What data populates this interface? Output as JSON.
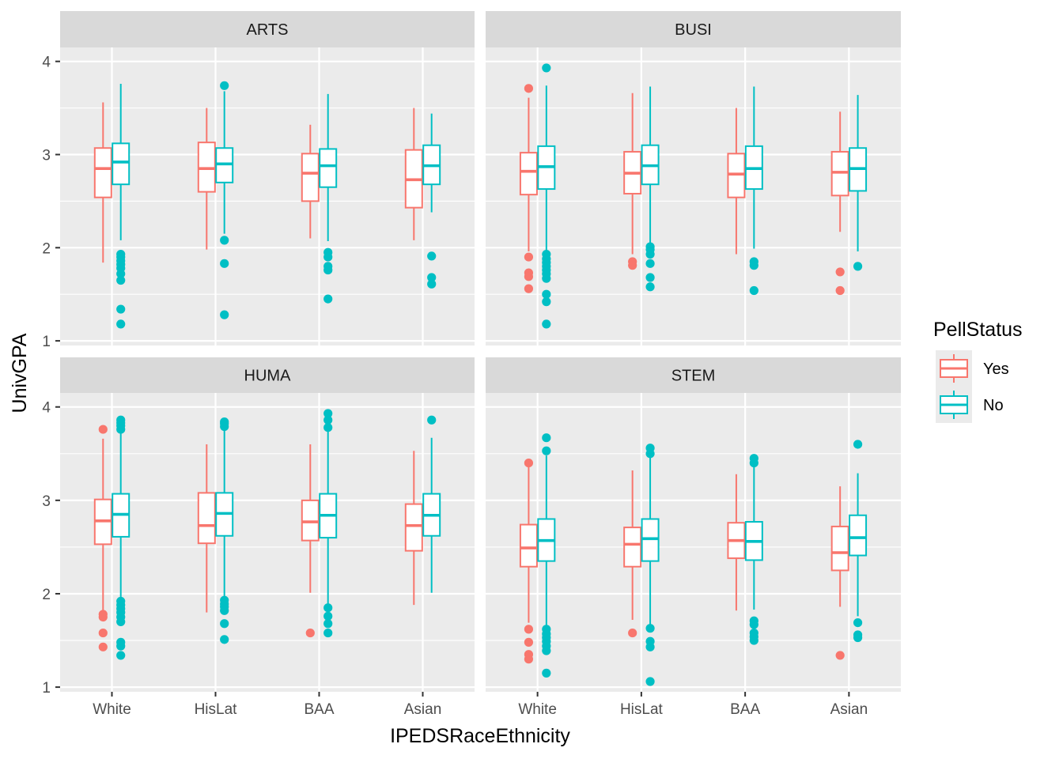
{
  "chart_data": {
    "type": "boxplot",
    "facet_layout": "2x2",
    "xlabel": "IPEDSRaceEthnicity",
    "ylabel": "UnivGPA",
    "ylim": [
      0.95,
      4.15
    ],
    "yticks": [
      1,
      2,
      3,
      4
    ],
    "categories": [
      "White",
      "HisLat",
      "BAA",
      "Asian"
    ],
    "legend": {
      "title": "PellStatus",
      "position": "right",
      "entries": [
        {
          "name": "Yes",
          "color": "#F8766D"
        },
        {
          "name": "No",
          "color": "#00BFC4"
        }
      ]
    },
    "panels": [
      {
        "facet": "ARTS",
        "groups": [
          {
            "category": "White",
            "series": "Yes",
            "q1": 2.54,
            "median": 2.85,
            "q3": 3.07,
            "whisker_low": 1.84,
            "whisker_high": 3.56,
            "outliers": []
          },
          {
            "category": "White",
            "series": "No",
            "q1": 2.68,
            "median": 2.92,
            "q3": 3.12,
            "whisker_low": 2.08,
            "whisker_high": 3.76,
            "outliers": [
              1.93,
              1.9,
              1.86,
              1.82,
              1.78,
              1.72,
              1.65,
              1.34,
              1.18
            ]
          },
          {
            "category": "HisLat",
            "series": "Yes",
            "q1": 2.6,
            "median": 2.85,
            "q3": 3.13,
            "whisker_low": 1.98,
            "whisker_high": 3.5,
            "outliers": []
          },
          {
            "category": "HisLat",
            "series": "No",
            "q1": 2.7,
            "median": 2.9,
            "q3": 3.07,
            "whisker_low": 2.15,
            "whisker_high": 3.68,
            "outliers": [
              3.74,
              2.08,
              1.83,
              1.28
            ]
          },
          {
            "category": "BAA",
            "series": "Yes",
            "q1": 2.5,
            "median": 2.8,
            "q3": 3.01,
            "whisker_low": 2.1,
            "whisker_high": 3.32,
            "outliers": []
          },
          {
            "category": "BAA",
            "series": "No",
            "q1": 2.65,
            "median": 2.88,
            "q3": 3.06,
            "whisker_low": 2.07,
            "whisker_high": 3.65,
            "outliers": [
              1.95,
              1.9,
              1.8,
              1.76,
              1.45
            ]
          },
          {
            "category": "Asian",
            "series": "Yes",
            "q1": 2.43,
            "median": 2.73,
            "q3": 3.05,
            "whisker_low": 2.08,
            "whisker_high": 3.5,
            "outliers": []
          },
          {
            "category": "Asian",
            "series": "No",
            "q1": 2.68,
            "median": 2.88,
            "q3": 3.1,
            "whisker_low": 2.38,
            "whisker_high": 3.44,
            "outliers": [
              1.91,
              1.68,
              1.61
            ]
          }
        ]
      },
      {
        "facet": "BUSI",
        "groups": [
          {
            "category": "White",
            "series": "Yes",
            "q1": 2.57,
            "median": 2.82,
            "q3": 3.02,
            "whisker_low": 1.96,
            "whisker_high": 3.61,
            "outliers": [
              3.71,
              1.9,
              1.73,
              1.69,
              1.56
            ]
          },
          {
            "category": "White",
            "series": "No",
            "q1": 2.63,
            "median": 2.87,
            "q3": 3.09,
            "whisker_low": 1.96,
            "whisker_high": 3.74,
            "outliers": [
              3.93,
              1.93,
              1.88,
              1.84,
              1.8,
              1.76,
              1.72,
              1.67,
              1.5,
              1.42,
              1.18
            ]
          },
          {
            "category": "HisLat",
            "series": "Yes",
            "q1": 2.58,
            "median": 2.8,
            "q3": 3.03,
            "whisker_low": 1.93,
            "whisker_high": 3.66,
            "outliers": [
              1.85,
              1.81
            ]
          },
          {
            "category": "HisLat",
            "series": "No",
            "q1": 2.68,
            "median": 2.88,
            "q3": 3.1,
            "whisker_low": 2.04,
            "whisker_high": 3.73,
            "outliers": [
              2.01,
              1.98,
              1.93,
              1.83,
              1.68,
              1.58
            ]
          },
          {
            "category": "BAA",
            "series": "Yes",
            "q1": 2.54,
            "median": 2.79,
            "q3": 3.01,
            "whisker_low": 1.93,
            "whisker_high": 3.5,
            "outliers": []
          },
          {
            "category": "BAA",
            "series": "No",
            "q1": 2.63,
            "median": 2.85,
            "q3": 3.09,
            "whisker_low": 1.99,
            "whisker_high": 3.73,
            "outliers": [
              1.85,
              1.81,
              1.54
            ]
          },
          {
            "category": "Asian",
            "series": "Yes",
            "q1": 2.56,
            "median": 2.81,
            "q3": 3.03,
            "whisker_low": 2.17,
            "whisker_high": 3.46,
            "outliers": [
              1.74,
              1.54
            ]
          },
          {
            "category": "Asian",
            "series": "No",
            "q1": 2.61,
            "median": 2.85,
            "q3": 3.07,
            "whisker_low": 1.96,
            "whisker_high": 3.64,
            "outliers": [
              1.8
            ]
          }
        ]
      },
      {
        "facet": "HUMA",
        "groups": [
          {
            "category": "White",
            "series": "Yes",
            "q1": 2.53,
            "median": 2.78,
            "q3": 3.01,
            "whisker_low": 1.8,
            "whisker_high": 3.66,
            "outliers": [
              3.76,
              1.78,
              1.75,
              1.58,
              1.43
            ]
          },
          {
            "category": "White",
            "series": "No",
            "q1": 2.61,
            "median": 2.85,
            "q3": 3.07,
            "whisker_low": 1.95,
            "whisker_high": 3.74,
            "outliers": [
              3.86,
              3.83,
              3.8,
              3.76,
              1.92,
              1.88,
              1.84,
              1.8,
              1.75,
              1.7,
              1.48,
              1.44,
              1.34
            ]
          },
          {
            "category": "HisLat",
            "series": "Yes",
            "q1": 2.54,
            "median": 2.73,
            "q3": 3.08,
            "whisker_low": 1.8,
            "whisker_high": 3.6,
            "outliers": []
          },
          {
            "category": "HisLat",
            "series": "No",
            "q1": 2.62,
            "median": 2.86,
            "q3": 3.08,
            "whisker_low": 1.96,
            "whisker_high": 3.76,
            "outliers": [
              3.84,
              3.82,
              3.79,
              1.93,
              1.89,
              1.86,
              1.82,
              1.68,
              1.51
            ]
          },
          {
            "category": "BAA",
            "series": "Yes",
            "q1": 2.57,
            "median": 2.77,
            "q3": 3.0,
            "whisker_low": 2.01,
            "whisker_high": 3.6,
            "outliers": [
              1.58
            ]
          },
          {
            "category": "BAA",
            "series": "No",
            "q1": 2.6,
            "median": 2.84,
            "q3": 3.07,
            "whisker_low": 1.88,
            "whisker_high": 3.76,
            "outliers": [
              3.93,
              3.86,
              3.78,
              1.85,
              1.76,
              1.68,
              1.58
            ]
          },
          {
            "category": "Asian",
            "series": "Yes",
            "q1": 2.46,
            "median": 2.73,
            "q3": 2.96,
            "whisker_low": 1.88,
            "whisker_high": 3.53,
            "outliers": []
          },
          {
            "category": "Asian",
            "series": "No",
            "q1": 2.62,
            "median": 2.84,
            "q3": 3.07,
            "whisker_low": 2.01,
            "whisker_high": 3.67,
            "outliers": [
              3.86
            ]
          }
        ]
      },
      {
        "facet": "STEM",
        "groups": [
          {
            "category": "White",
            "series": "Yes",
            "q1": 2.29,
            "median": 2.49,
            "q3": 2.74,
            "whisker_low": 1.69,
            "whisker_high": 3.39,
            "outliers": [
              3.4,
              1.62,
              1.48,
              1.35,
              1.3
            ]
          },
          {
            "category": "White",
            "series": "No",
            "q1": 2.35,
            "median": 2.57,
            "q3": 2.8,
            "whisker_low": 1.66,
            "whisker_high": 3.48,
            "outliers": [
              3.67,
              3.53,
              1.62,
              1.57,
              1.53,
              1.49,
              1.44,
              1.39,
              1.15
            ]
          },
          {
            "category": "HisLat",
            "series": "Yes",
            "q1": 2.29,
            "median": 2.53,
            "q3": 2.71,
            "whisker_low": 1.72,
            "whisker_high": 3.32,
            "outliers": [
              1.58
            ]
          },
          {
            "category": "HisLat",
            "series": "No",
            "q1": 2.35,
            "median": 2.59,
            "q3": 2.8,
            "whisker_low": 1.66,
            "whisker_high": 3.47,
            "outliers": [
              3.56,
              3.5,
              1.63,
              1.49,
              1.43,
              1.06
            ]
          },
          {
            "category": "BAA",
            "series": "Yes",
            "q1": 2.38,
            "median": 2.57,
            "q3": 2.76,
            "whisker_low": 1.82,
            "whisker_high": 3.28,
            "outliers": []
          },
          {
            "category": "BAA",
            "series": "No",
            "q1": 2.36,
            "median": 2.56,
            "q3": 2.77,
            "whisker_low": 1.83,
            "whisker_high": 3.38,
            "outliers": [
              3.45,
              3.4,
              1.71,
              1.67,
              1.58,
              1.54,
              1.5
            ]
          },
          {
            "category": "Asian",
            "series": "Yes",
            "q1": 2.25,
            "median": 2.44,
            "q3": 2.72,
            "whisker_low": 1.86,
            "whisker_high": 3.15,
            "outliers": [
              1.34
            ]
          },
          {
            "category": "Asian",
            "series": "No",
            "q1": 2.41,
            "median": 2.6,
            "q3": 2.84,
            "whisker_low": 1.76,
            "whisker_high": 3.29,
            "outliers": [
              3.6,
              1.69,
              1.56,
              1.53
            ]
          }
        ]
      }
    ]
  }
}
